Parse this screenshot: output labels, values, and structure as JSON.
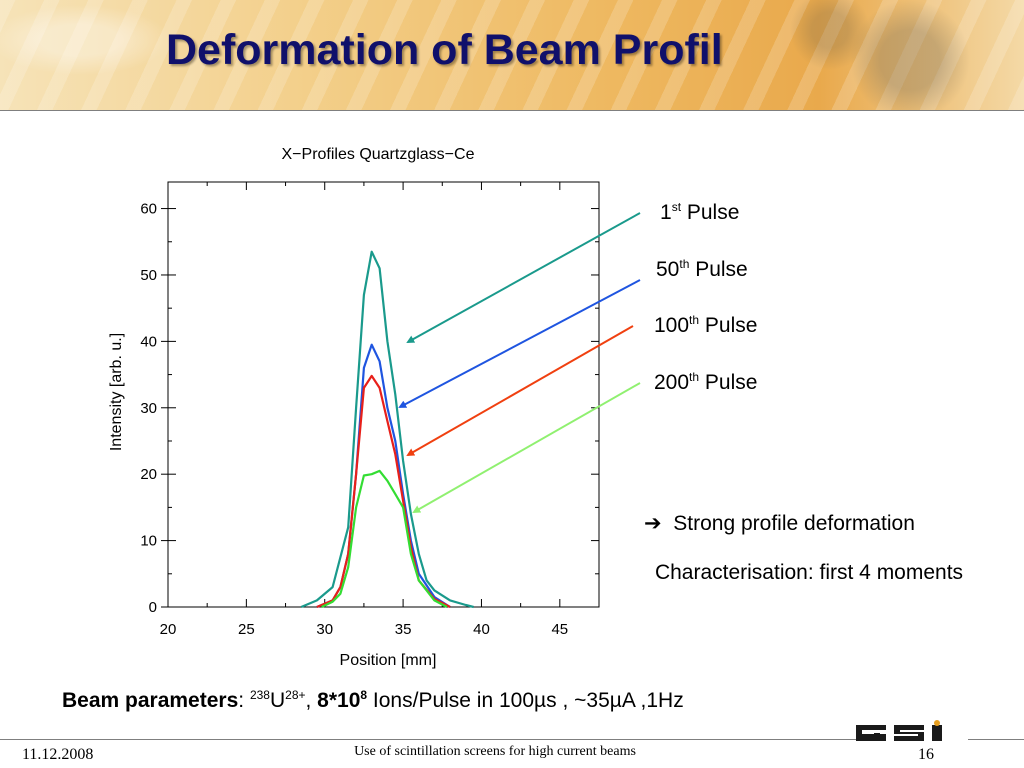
{
  "slide": {
    "title": "Deformation of Beam Profil",
    "bullet_arrow": "➔",
    "bullet_text": "Strong profile deformation",
    "characterisation": "Characterisation: first 4 moments",
    "params": {
      "label": "Beam parameters",
      "colon": ": ",
      "mass_number": "238",
      "element": "U",
      "charge": "28+",
      "comma": ", ",
      "ions_base": "8*10",
      "ions_exp": "8",
      "rest": " Ions/Pulse in 100µs , ~35µA ,1Hz"
    },
    "footer": {
      "date": "11.12.2008",
      "center": "Use of scintillation screens for high current beams",
      "page": "16"
    },
    "logo": "GSI"
  },
  "annotations": [
    {
      "num": "1",
      "sup": "st",
      "text": " Pulse",
      "color": "#1a9a8c"
    },
    {
      "num": "50",
      "sup": "th",
      "text": " Pulse",
      "color": "#1f55e0"
    },
    {
      "num": "100",
      "sup": "th",
      "text": " Pulse",
      "color": "#f04010"
    },
    {
      "num": "200",
      "sup": "th",
      "text": " Pulse",
      "color": "#90f070"
    }
  ],
  "chart_data": {
    "type": "line",
    "title": "X−Profiles Quartzglass−Ce",
    "xlabel": "Position [mm]",
    "ylabel": "Intensity [arb. u.]",
    "xlim": [
      20,
      47.5
    ],
    "ylim": [
      0,
      64
    ],
    "xticks": [
      20,
      25,
      30,
      35,
      40,
      45
    ],
    "yticks": [
      0,
      10,
      20,
      30,
      40,
      50,
      60
    ],
    "grid": false,
    "series": [
      {
        "color": "#1a9a8c",
        "x": [
          28.5,
          29.5,
          30.5,
          31.5,
          32.0,
          32.5,
          33.0,
          33.5,
          34.0,
          34.5,
          35.0,
          35.5,
          36.0,
          36.5,
          37.0,
          38.0,
          39.0,
          39.5
        ],
        "y": [
          0,
          1,
          3,
          12,
          30,
          47,
          53.5,
          51,
          40,
          32,
          22,
          14,
          8,
          4,
          2.5,
          1,
          0.3,
          0
        ]
      },
      {
        "color": "#1f55e0",
        "x": [
          29.5,
          30.5,
          31.0,
          31.5,
          32.0,
          32.5,
          33.0,
          33.5,
          34.0,
          34.5,
          35.0,
          35.5,
          36.0,
          37.0,
          38.0
        ],
        "y": [
          0,
          1,
          3,
          8,
          20,
          36,
          39.5,
          37,
          30,
          25,
          17,
          10,
          5,
          1.5,
          0
        ]
      },
      {
        "color": "#e8201a",
        "x": [
          29.5,
          30.5,
          31.0,
          31.5,
          32.0,
          32.5,
          33.0,
          33.5,
          34.0,
          34.5,
          35.0,
          35.5,
          36.0,
          37.0,
          38.0
        ],
        "y": [
          0,
          1,
          3,
          8,
          20,
          33,
          34.8,
          33,
          28,
          23,
          16,
          9,
          4,
          1.2,
          0
        ]
      },
      {
        "color": "#33dd33",
        "x": [
          29.8,
          30.5,
          31.0,
          31.5,
          32.0,
          32.5,
          33.0,
          33.5,
          34.0,
          34.5,
          35.0,
          35.5,
          36.0,
          37.0,
          37.8
        ],
        "y": [
          0,
          0.8,
          2,
          6,
          15,
          19.8,
          20,
          20.5,
          19,
          17,
          15,
          8,
          4,
          1,
          0
        ]
      }
    ]
  }
}
